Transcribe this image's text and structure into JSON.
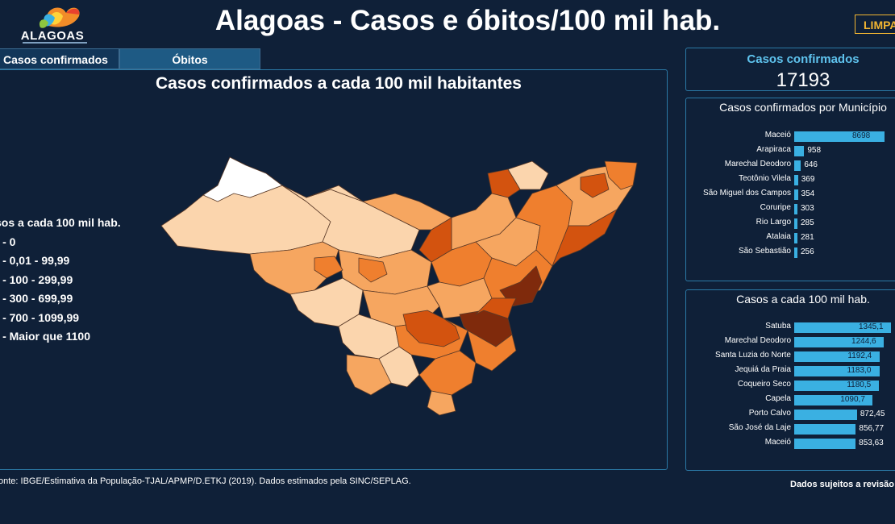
{
  "header": {
    "logo_text": "ALAGOAS",
    "title": "Alagoas - Casos e óbitos/100 mil hab.",
    "clear_button": "LIMPA"
  },
  "tabs": [
    {
      "label": "Casos confirmados"
    },
    {
      "label": "Óbitos"
    }
  ],
  "map": {
    "title": "Casos confirmados a cada 100 mil habitantes",
    "legend": {
      "title": "sos a cada 100 mil hab.",
      "items": [
        {
          "label": "ª - 0",
          "color": "#ffffff"
        },
        {
          "label": "ª - 0,01 - 99,99",
          "color": "#fbd5ad"
        },
        {
          "label": "ª - 100 - 299,99",
          "color": "#f6a660"
        },
        {
          "label": "ª - 300 - 699,99",
          "color": "#ef7f2e"
        },
        {
          "label": "ª - 700 - 1099,99",
          "color": "#d3530f"
        },
        {
          "label": "ª - Maior que 1100",
          "color": "#7f2a0c"
        }
      ]
    }
  },
  "kpi": {
    "label": "Casos confirmados",
    "value": "17193"
  },
  "cases_by_municipality": {
    "title": "Casos confirmados por Município",
    "rows": [
      {
        "name": "Maceió",
        "value": 8698,
        "label": "8698"
      },
      {
        "name": "Arapiraca",
        "value": 958,
        "label": "958"
      },
      {
        "name": "Marechal Deodoro",
        "value": 646,
        "label": "646"
      },
      {
        "name": "Teotônio Vilela",
        "value": 369,
        "label": "369"
      },
      {
        "name": "São Miguel dos Campos",
        "value": 354,
        "label": "354"
      },
      {
        "name": "Coruripe",
        "value": 303,
        "label": "303"
      },
      {
        "name": "Rio Largo",
        "value": 285,
        "label": "285"
      },
      {
        "name": "Atalaia",
        "value": 281,
        "label": "281"
      },
      {
        "name": "São Sebastião",
        "value": 256,
        "label": "256"
      }
    ]
  },
  "cases_per_100k": {
    "title": "Casos a cada 100 mil hab.",
    "rows": [
      {
        "name": "Satuba",
        "value": 1345.1,
        "label": "1345,1"
      },
      {
        "name": "Marechal Deodoro",
        "value": 1244.6,
        "label": "1244,6"
      },
      {
        "name": "Santa Luzia do Norte",
        "value": 1192.4,
        "label": "1192,4"
      },
      {
        "name": "Jequiá da Praia",
        "value": 1183.0,
        "label": "1183,0"
      },
      {
        "name": "Coqueiro Seco",
        "value": 1180.5,
        "label": "1180,5"
      },
      {
        "name": "Capela",
        "value": 1090.7,
        "label": "1090,7"
      },
      {
        "name": "Porto Calvo",
        "value": 872.45,
        "label": "872,45"
      },
      {
        "name": "São José da Laje",
        "value": 856.77,
        "label": "856,77"
      },
      {
        "name": "Maceió",
        "value": 853.63,
        "label": "853,63"
      }
    ]
  },
  "footer": {
    "source": "onte: IBGE/Estimativa da População-TJAL/APMP/D.ETKJ (2019). Dados estimados pela SINC/SEPLAG.",
    "disclaimer": "Dados sujeitos a revisão"
  },
  "colors": {
    "background": "#0f2038",
    "accent": "#3ab0e2",
    "highlight": "#f2b532"
  }
}
